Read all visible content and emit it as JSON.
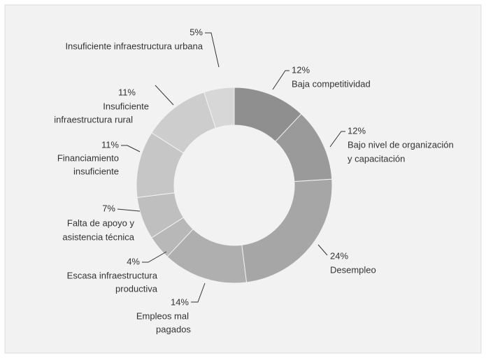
{
  "chart_data": {
    "type": "donut",
    "categories": [
      [
        "Baja competitividad"
      ],
      [
        "Bajo nivel de organización",
        "y capacitación"
      ],
      [
        "Desempleo"
      ],
      [
        "Empleos mal",
        "pagados"
      ],
      [
        "Escasa infraestructura",
        "productiva"
      ],
      [
        "Falta de apoyo y",
        "asistencia técnica"
      ],
      [
        "Financiamiento",
        "insuficiente"
      ],
      [
        "Insuficiente",
        "infraestructura rural"
      ],
      [
        "Insuficiente infraestructura urbana"
      ]
    ],
    "values": [
      12,
      12,
      24,
      14,
      4,
      7,
      11,
      11,
      5
    ],
    "value_labels": [
      "12%",
      "12%",
      "24%",
      "14%",
      "4%",
      "7%",
      "11%",
      "11%",
      "5%"
    ],
    "colors": [
      "#8f8f8f",
      "#9a9a9a",
      "#a6a6a6",
      "#afafaf",
      "#b8b8b8",
      "#bfbfbf",
      "#c6c6c6",
      "#cdcdcd",
      "#d7d7d7"
    ]
  }
}
